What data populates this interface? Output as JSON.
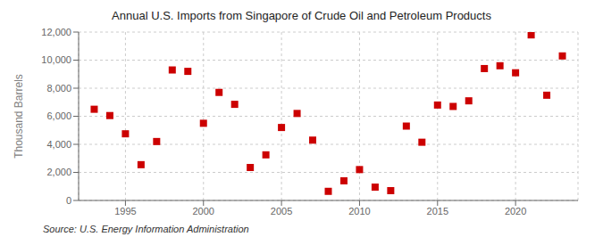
{
  "chart_data": {
    "type": "scatter",
    "title": "Annual U.S. Imports from Singapore of Crude Oil and Petroleum Products",
    "ylabel": "Thousand Barrels",
    "annotations": [
      "Source: U.S. Energy Information Administration"
    ],
    "x": [
      1993,
      1994,
      1995,
      1996,
      1997,
      1998,
      1999,
      2000,
      2001,
      2002,
      2003,
      2004,
      2005,
      2006,
      2007,
      2008,
      2009,
      2010,
      2011,
      2012,
      2013,
      2014,
      2015,
      2016,
      2017,
      2018,
      2019,
      2020,
      2021,
      2022,
      2023
    ],
    "values": [
      6500,
      6050,
      4750,
      2550,
      4200,
      9300,
      9200,
      5500,
      7700,
      6850,
      2350,
      3250,
      5200,
      6200,
      4300,
      650,
      1400,
      2200,
      950,
      700,
      5300,
      4150,
      6800,
      6700,
      7100,
      9400,
      9600,
      9100,
      11800,
      7500,
      10300
    ],
    "color": "#cc0000",
    "marker": "square",
    "xlim": [
      1992,
      2024
    ],
    "xticks": [
      1995,
      2000,
      2005,
      2010,
      2015,
      2020
    ],
    "ylim": [
      0,
      12000
    ],
    "yticks": [
      0,
      {
        "value": 2000,
        "label": "2,000"
      },
      {
        "value": 4000,
        "label": "4,000"
      },
      {
        "value": 6000,
        "label": "6,000"
      },
      {
        "value": 8000,
        "label": "8,000"
      },
      {
        "value": 10000,
        "label": "10,000"
      },
      {
        "value": 12000,
        "label": "12,000"
      }
    ],
    "grid": true
  }
}
